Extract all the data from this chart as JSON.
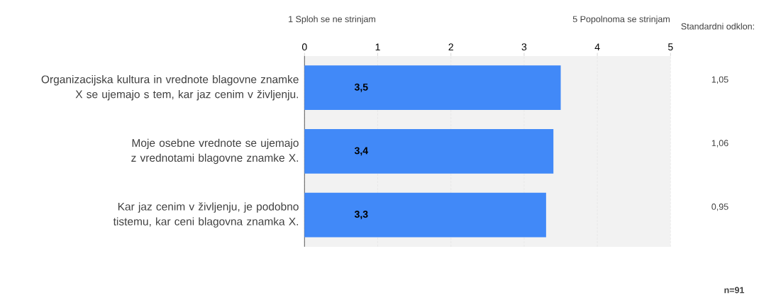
{
  "chart_data": {
    "type": "bar",
    "orientation": "horizontal",
    "categories": [
      "Organizacijska kultura in vrednote blagovne znamke X  se ujemajo s tem, kar jaz cenim v življenju.",
      "Moje osebne vrednote se ujemajo z vrednotami blagovne znamke X.",
      "Kar jaz cenim v življenju, je podobno tistemu, kar ceni blagovna znamka X."
    ],
    "values": [
      3.5,
      3.4,
      3.3
    ],
    "value_labels": [
      "3,5",
      "3,4",
      "3,3"
    ],
    "color": "#4189f8",
    "xlim": [
      0,
      5
    ],
    "xticks": [
      0,
      1,
      2,
      3,
      4,
      5
    ],
    "grid": "x",
    "annotations": [
      "1 Sploh se ne strinjam",
      "5 Popolnoma se strinjam",
      "Standardni odklon:",
      "1,05",
      "1,06",
      "0,95",
      "n=91"
    ]
  }
}
